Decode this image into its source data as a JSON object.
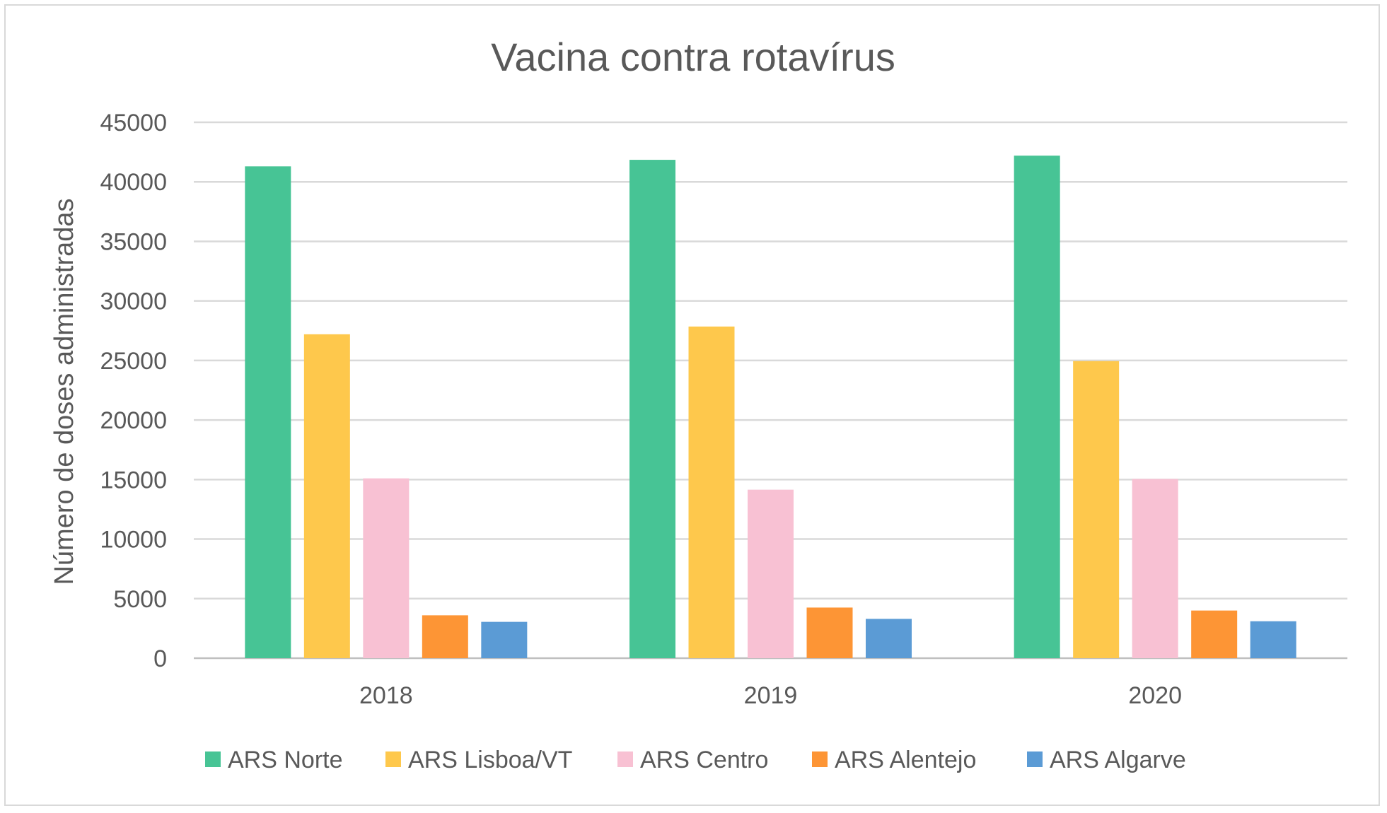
{
  "chart_data": {
    "type": "bar",
    "title": "Vacina contra rotavírus",
    "xlabel": "",
    "ylabel": "Número de doses administradas",
    "ylim": [
      0,
      45000
    ],
    "yticks": [
      0,
      5000,
      10000,
      15000,
      20000,
      25000,
      30000,
      35000,
      40000,
      45000
    ],
    "ytick_labels": [
      "0",
      "5000",
      "10000",
      "15000",
      "20000",
      "25000",
      "30000",
      "35000",
      "40000",
      "45000"
    ],
    "grid": true,
    "legend_position": "bottom",
    "categories": [
      "2018",
      "2019",
      "2020"
    ],
    "series": [
      {
        "name": "ARS Norte",
        "color": "#47c495",
        "values": [
          41300,
          41850,
          42200
        ]
      },
      {
        "name": "ARS Lisboa/VT",
        "color": "#fec84c",
        "values": [
          27200,
          27850,
          24950
        ]
      },
      {
        "name": "ARS Centro",
        "color": "#f8c1d3",
        "values": [
          15100,
          14150,
          15050
        ]
      },
      {
        "name": "ARS Alentejo",
        "color": "#fd9535",
        "values": [
          3600,
          4250,
          4000
        ]
      },
      {
        "name": "ARS Algarve",
        "color": "#5b9bd5",
        "values": [
          3050,
          3300,
          3100
        ]
      }
    ]
  }
}
